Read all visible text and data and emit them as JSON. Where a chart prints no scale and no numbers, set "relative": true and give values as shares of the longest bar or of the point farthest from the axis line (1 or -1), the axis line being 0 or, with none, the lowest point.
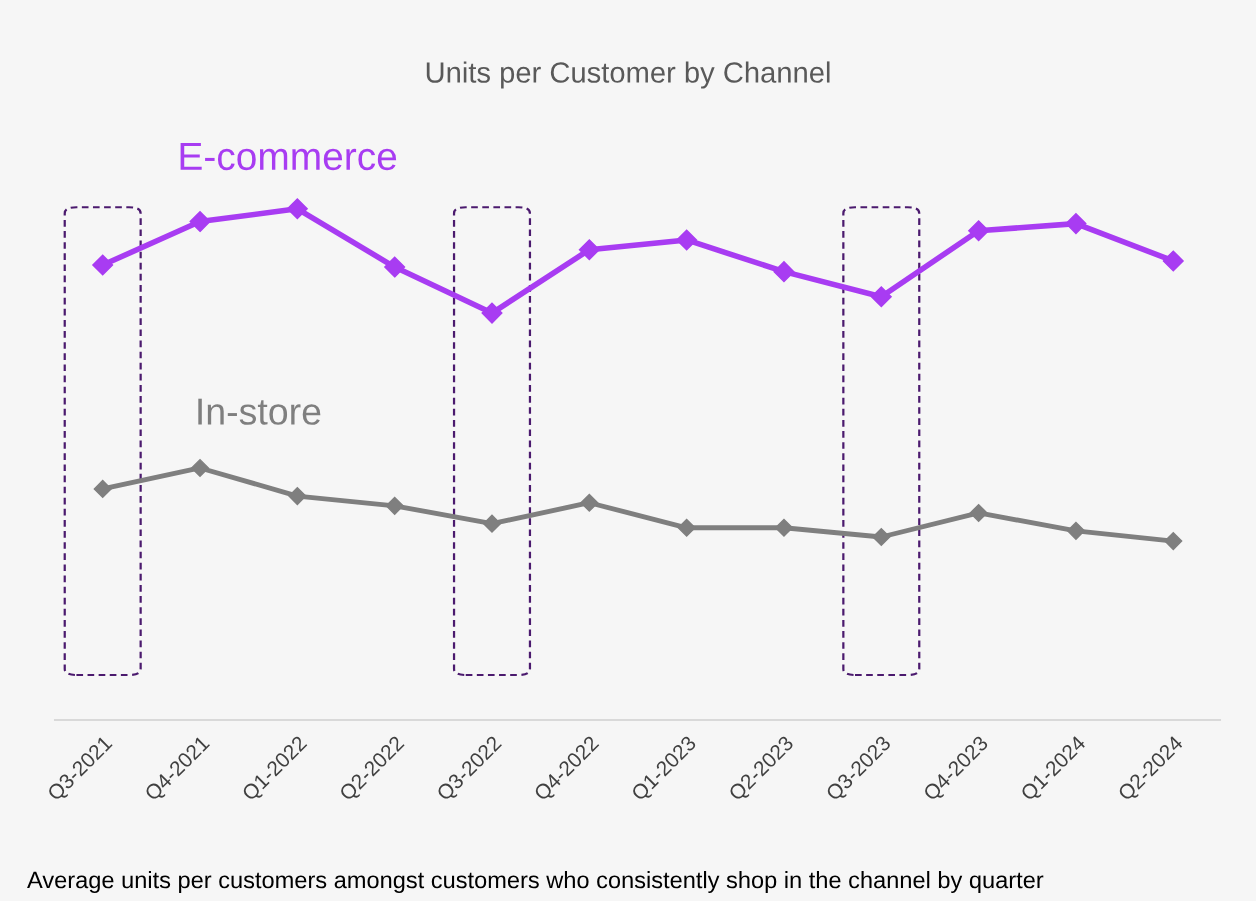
{
  "chart_data": {
    "type": "line",
    "title": "Units per Customer by Channel",
    "relative": true,
    "marker": "diamond",
    "line_style": "solid",
    "grid": false,
    "legend": false,
    "categories": [
      "Q3-2021",
      "Q4-2021",
      "Q1-2022",
      "Q2-2022",
      "Q3-2022",
      "Q4-2022",
      "Q1-2023",
      "Q2-2023",
      "Q3-2023",
      "Q4-2023",
      "Q1-2024",
      "Q2-2024"
    ],
    "series": [
      {
        "name": "E-commerce",
        "color": "#a83cf2",
        "values": [
          0.89,
          0.975,
          1,
          0.886,
          0.796,
          0.92,
          0.939,
          0.877,
          0.828,
          0.957,
          0.971,
          0.898
        ]
      },
      {
        "name": "In-store",
        "color": "#7f7f7f",
        "values": [
          0.452,
          0.493,
          0.438,
          0.419,
          0.384,
          0.425,
          0.376,
          0.376,
          0.358,
          0.405,
          0.37,
          0.35
        ]
      }
    ],
    "annotations": [
      "Average units per customers amongst customers who consistently shop in the channel by quarter"
    ]
  }
}
